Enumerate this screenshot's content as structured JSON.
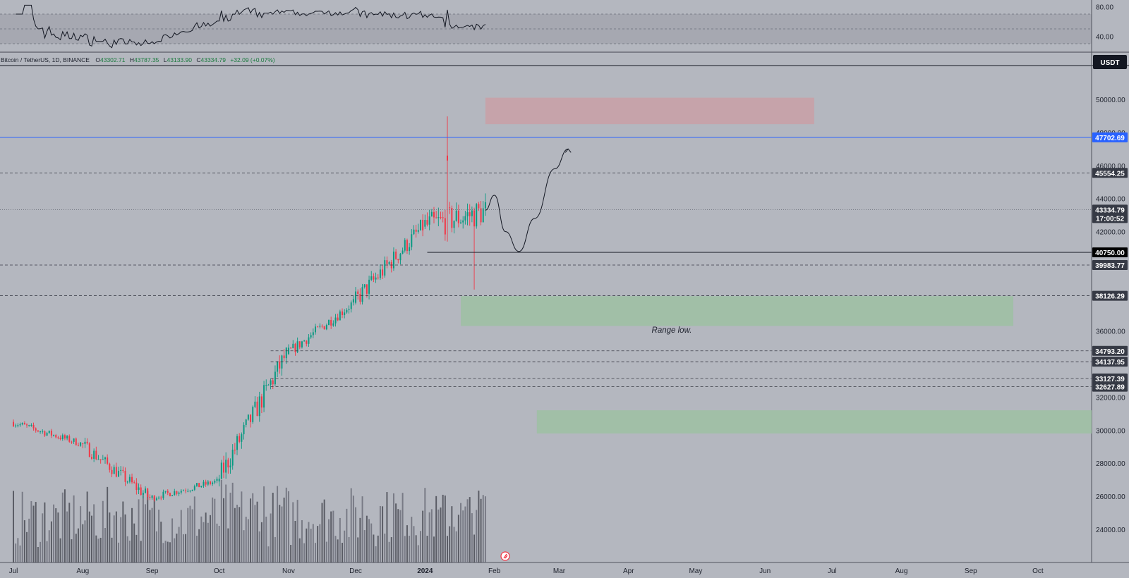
{
  "symbol": {
    "name": "Bitcoin / TetherUS, 1D, BINANCE",
    "open_label": "O",
    "open": "43302.71",
    "high_label": "H",
    "high": "43787.35",
    "low_label": "L",
    "low": "43133.90",
    "close_label": "C",
    "close": "43334.79",
    "change": "+32.09 (+0.07%)"
  },
  "currency_badge": "USDT",
  "rsi_axis": {
    "ticks": [
      "80.00",
      "40.00"
    ]
  },
  "price_axis": {
    "min": 22000,
    "max": 52000,
    "ticks": [
      "50000.00",
      "48000.00",
      "46000.00",
      "44000.00",
      "42000.00",
      "36000.00",
      "32000.00",
      "30000.00",
      "28000.00",
      "26000.00",
      "24000.00"
    ]
  },
  "price_tags": [
    {
      "label": "47702.69",
      "value": 47702.69,
      "style": "blue"
    },
    {
      "label": "45554.25",
      "value": 45554.25,
      "style": "dark"
    },
    {
      "label": "43334.79",
      "value": 43334.79,
      "style": "dark",
      "sub": "17:00:52"
    },
    {
      "label": "40750.00",
      "value": 40750.0,
      "style": "black"
    },
    {
      "label": "39983.77",
      "value": 39983.77,
      "style": "dark"
    },
    {
      "label": "38126.29",
      "value": 38126.29,
      "style": "dark"
    },
    {
      "label": "34793.20",
      "value": 34793.2,
      "style": "dark"
    },
    {
      "label": "34137.95",
      "value": 34137.95,
      "style": "dark"
    },
    {
      "label": "33127.39",
      "value": 33127.39,
      "style": "dark"
    },
    {
      "label": "32627.89",
      "value": 32627.89,
      "style": "dark"
    }
  ],
  "time_axis": {
    "labels": [
      "Jul",
      "Aug",
      "Sep",
      "Oct",
      "Nov",
      "Dec",
      "2024",
      "Feb",
      "Mar",
      "Apr",
      "May",
      "Jun",
      "Jul",
      "Aug",
      "Sep",
      "Oct"
    ]
  },
  "annotations": {
    "range_low": "Range low."
  },
  "colors": {
    "background": "#b4b7bf",
    "up_candle": "#089981",
    "down_candle": "#f23645",
    "resistance_zone": "#c9a0a6",
    "support_zone": "#9fc0a4",
    "blue_line": "#2962ff"
  },
  "chart_data": {
    "type": "candlestick",
    "title": "Bitcoin / TetherUS, 1D, BINANCE",
    "x_range": [
      "2023-06-25",
      "2024-10-25"
    ],
    "y_range": [
      22000,
      52000
    ],
    "candles_monthly_ohlc": [
      {
        "month": "2023-07",
        "open": 30500,
        "high": 31800,
        "low": 29000,
        "close": 29200
      },
      {
        "month": "2023-08",
        "open": 29200,
        "high": 30200,
        "low": 25200,
        "close": 25900
      },
      {
        "month": "2023-09",
        "open": 25900,
        "high": 27500,
        "low": 24900,
        "close": 26900
      },
      {
        "month": "2023-10",
        "open": 26900,
        "high": 35000,
        "low": 26600,
        "close": 34600
      },
      {
        "month": "2023-11",
        "open": 34600,
        "high": 38400,
        "low": 34100,
        "close": 37700
      },
      {
        "month": "2023-12",
        "open": 37700,
        "high": 44700,
        "low": 37600,
        "close": 42300
      },
      {
        "month": "2024-01",
        "open": 42300,
        "high": 48970,
        "low": 38500,
        "close": 43334.79
      }
    ],
    "zones": [
      {
        "kind": "resistance",
        "from_date": "2024-01-28",
        "to_date": "2024-06-23",
        "low": 48500,
        "high": 50100
      },
      {
        "kind": "support",
        "from_date": "2024-01-17",
        "to_date": "2024-09-20",
        "low": 36300,
        "high": 38100,
        "label": "Range low."
      },
      {
        "kind": "support",
        "from_date": "2024-02-20",
        "to_date": "2024-10-25",
        "low": 29800,
        "high": 31200
      }
    ],
    "horizontal_levels": [
      47702.69,
      45554.25,
      43334.79,
      40750.0,
      39983.77,
      38126.29,
      34793.2,
      34137.95,
      33127.39,
      32627.89
    ],
    "projection": [
      {
        "date": "2024-01-28",
        "value": 43300
      },
      {
        "date": "2024-02-01",
        "value": 44200
      },
      {
        "date": "2024-02-06",
        "value": 42000
      },
      {
        "date": "2024-02-12",
        "value": 40800
      },
      {
        "date": "2024-02-19",
        "value": 42800
      },
      {
        "date": "2024-02-28",
        "value": 45800
      },
      {
        "date": "2024-03-05",
        "value": 47000
      }
    ],
    "rsi": {
      "levels": [
        70,
        30
      ],
      "last": 58
    }
  }
}
